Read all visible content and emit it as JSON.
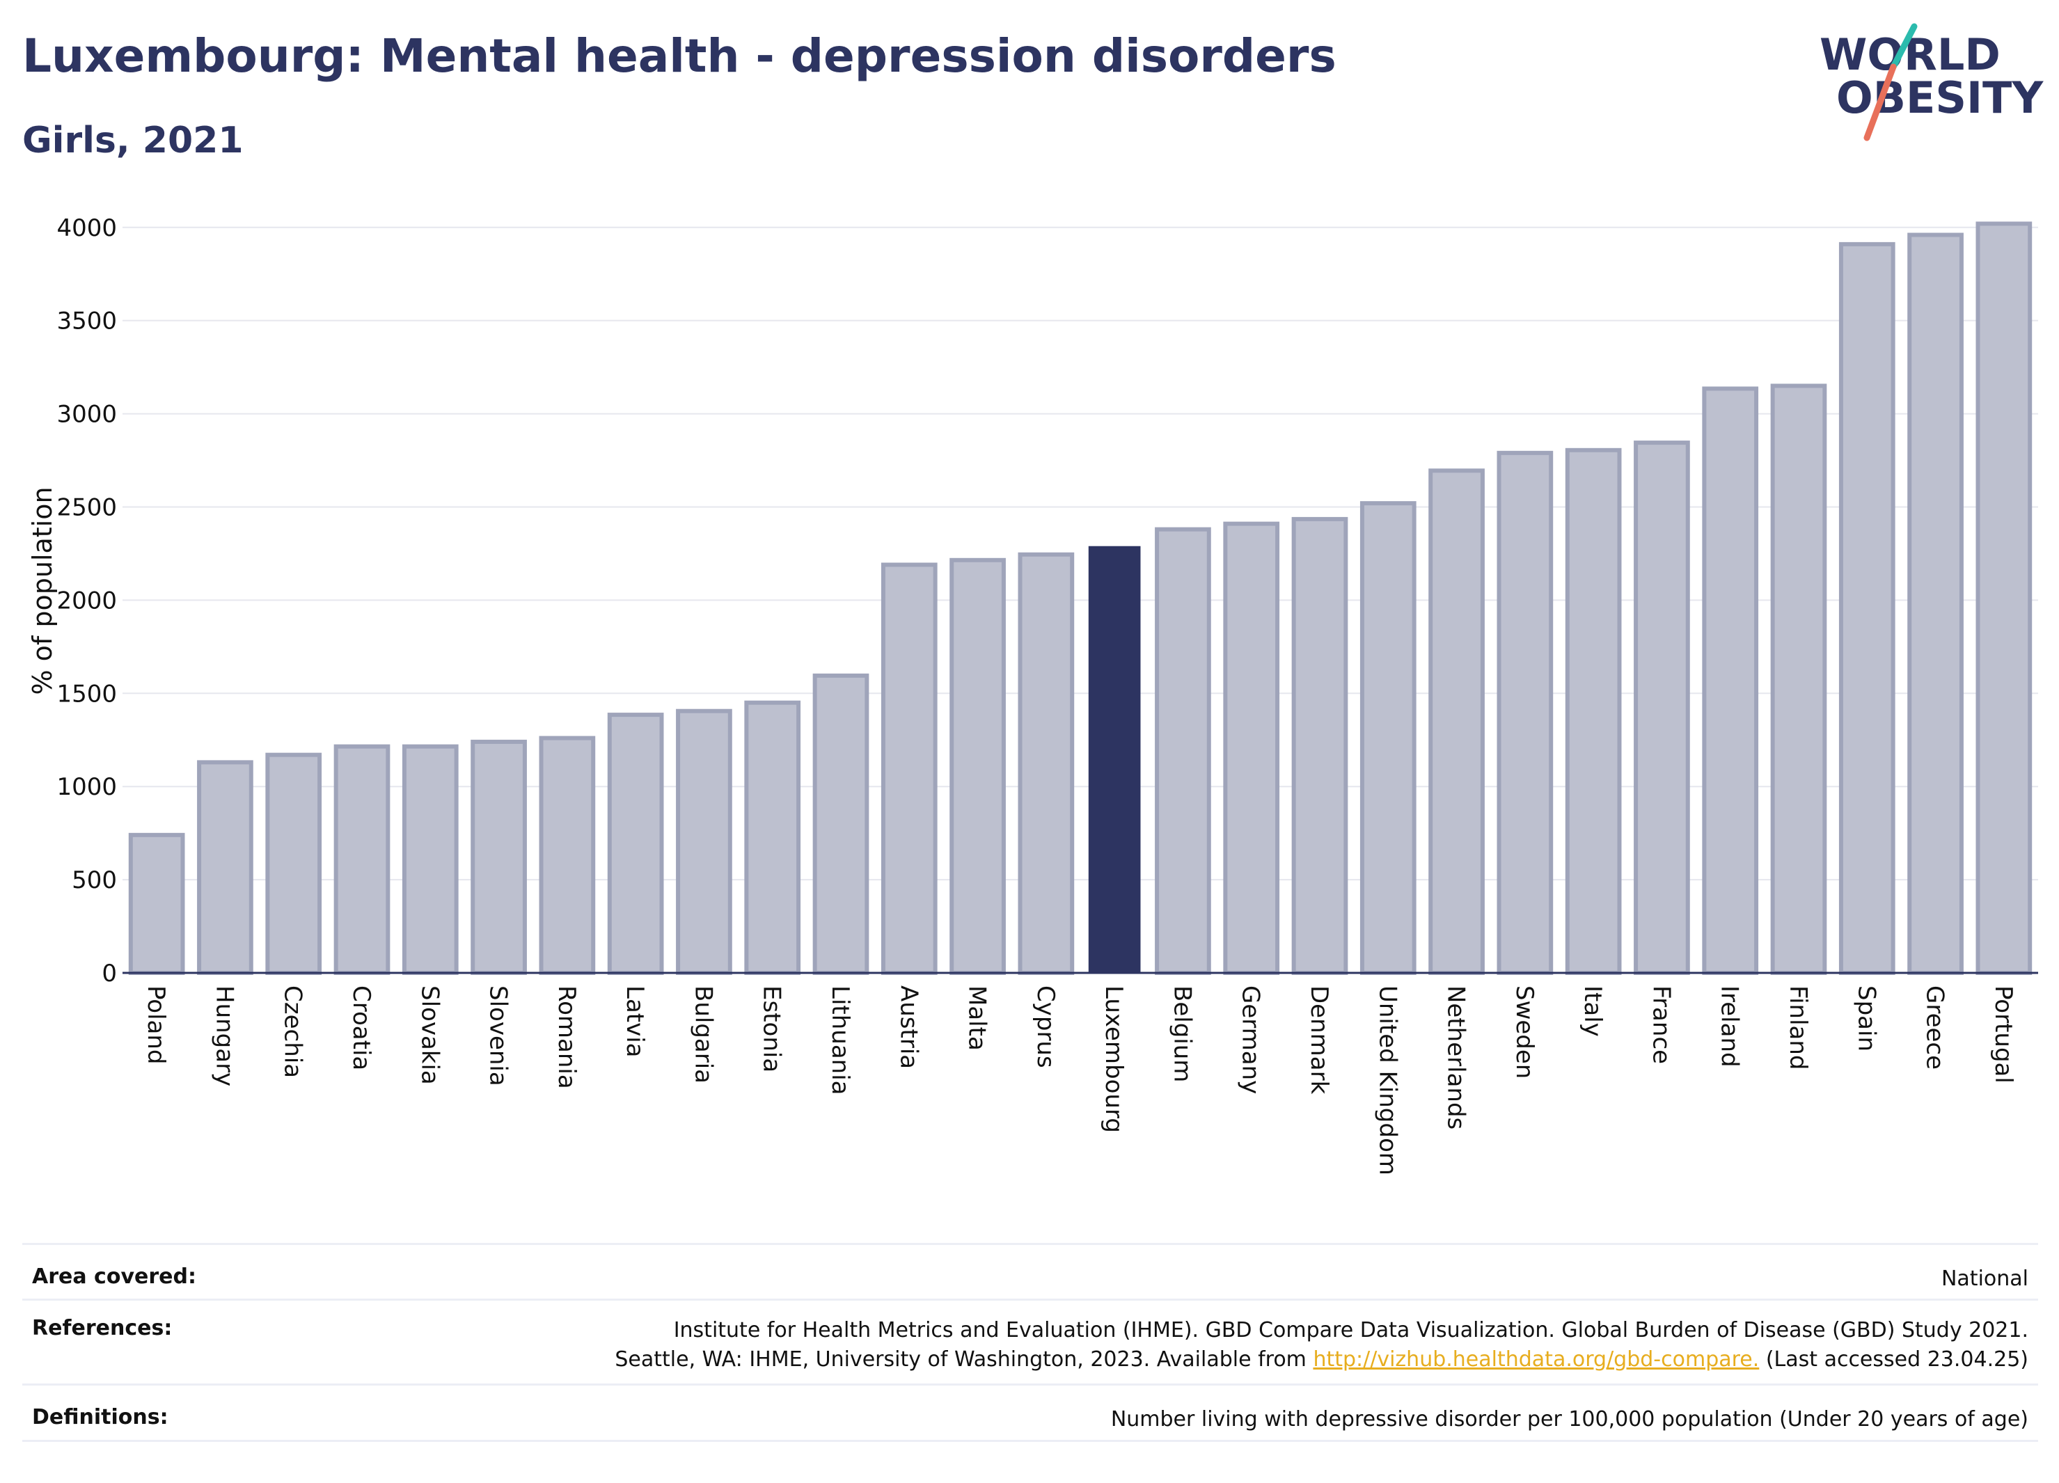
{
  "header": {
    "title": "Luxembourg: Mental health - depression disorders",
    "subtitle": "Girls, 2021"
  },
  "logo": {
    "line1": "WORLD",
    "line2": "OBESITY",
    "text_color": "#2d3461",
    "slash_color_top": "#2bbbad",
    "slash_color_bottom": "#e8705a"
  },
  "colors": {
    "bar_fill": "#bdc0cf",
    "bar_stroke": "#9fa4ba",
    "highlight": "#2d3461",
    "grid": "#e6e7ee"
  },
  "chart_data": {
    "type": "bar",
    "title": "Luxembourg: Mental health - depression disorders",
    "subtitle": "Girls, 2021",
    "xlabel": "",
    "ylabel": "% of population",
    "ylim": [
      0,
      4100
    ],
    "yticks": [
      0,
      500,
      1000,
      1500,
      2000,
      2500,
      3000,
      3500,
      4000
    ],
    "grid": true,
    "highlight": "Luxembourg",
    "categories": [
      "Poland",
      "Hungary",
      "Czechia",
      "Croatia",
      "Slovakia",
      "Slovenia",
      "Romania",
      "Latvia",
      "Bulgaria",
      "Estonia",
      "Lithuania",
      "Austria",
      "Malta",
      "Cyprus",
      "Luxembourg",
      "Belgium",
      "Germany",
      "Denmark",
      "United Kingdom",
      "Netherlands",
      "Sweden",
      "Italy",
      "France",
      "Ireland",
      "Finland",
      "Spain",
      "Greece",
      "Portugal"
    ],
    "values": [
      740,
      1130,
      1170,
      1215,
      1215,
      1240,
      1260,
      1385,
      1405,
      1450,
      1595,
      2190,
      2215,
      2245,
      2290,
      2380,
      2410,
      2435,
      2520,
      2695,
      2790,
      2805,
      2845,
      3135,
      3150,
      3910,
      3960,
      4020
    ]
  },
  "footer": {
    "area_label": "Area covered:",
    "area_value": "National",
    "references_label": "References:",
    "references_line1": "Institute for Health Metrics and Evaluation (IHME). GBD Compare Data Visualization. Global Burden of Disease (GBD) Study 2021.",
    "references_line2_pre": "Seattle, WA: IHME, University of Washington, 2023. Available from ",
    "references_link": "http://vizhub.healthdata.org/gbd-compare.",
    "references_line2_post": " (Last accessed 23.04.25)",
    "definitions_label": "Definitions:",
    "definitions_value": "Number living with depressive disorder per 100,000 population (Under 20 years of age)"
  }
}
